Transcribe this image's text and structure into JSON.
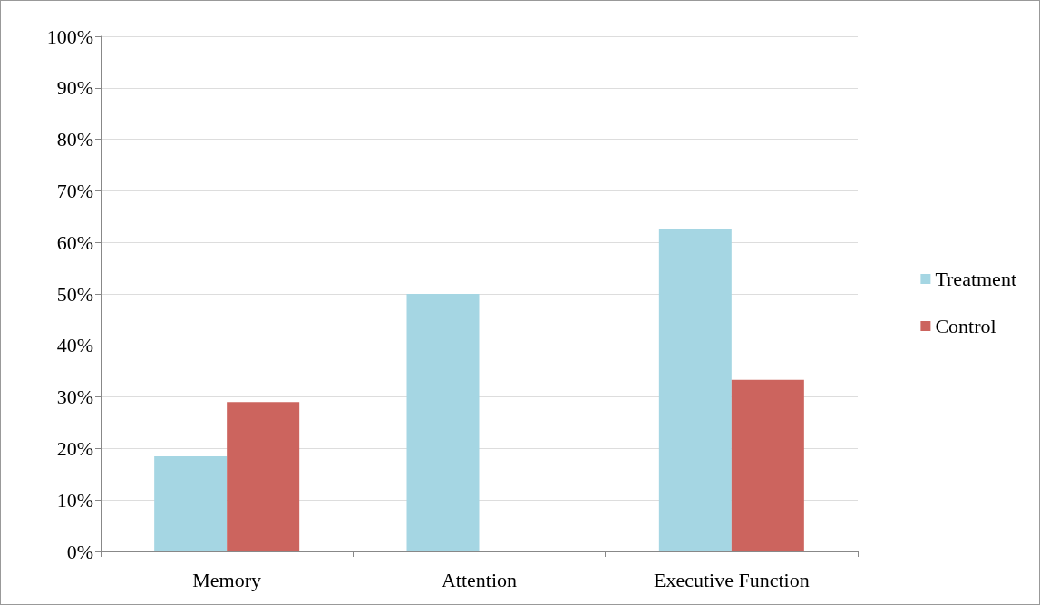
{
  "chart_data": {
    "type": "bar",
    "categories": [
      "Memory",
      "Attention",
      "Executive Function"
    ],
    "series": [
      {
        "name": "Treatment",
        "color": "#a5d6e3",
        "values": [
          18.5,
          50,
          62.5
        ]
      },
      {
        "name": "Control",
        "color": "#cc645e",
        "values": [
          29,
          0,
          33.3
        ]
      }
    ],
    "ylim": [
      0,
      100
    ],
    "yticks": [
      {
        "value": 0,
        "label": "0%"
      },
      {
        "value": 10,
        "label": "10%"
      },
      {
        "value": 20,
        "label": "20%"
      },
      {
        "value": 30,
        "label": "30%"
      },
      {
        "value": 40,
        "label": "40%"
      },
      {
        "value": 50,
        "label": "50%"
      },
      {
        "value": 60,
        "label": "60%"
      },
      {
        "value": 70,
        "label": "70%"
      },
      {
        "value": 80,
        "label": "80%"
      },
      {
        "value": 90,
        "label": "90%"
      },
      {
        "value": 100,
        "label": "100%"
      }
    ],
    "grid": "y",
    "legend": "right"
  }
}
